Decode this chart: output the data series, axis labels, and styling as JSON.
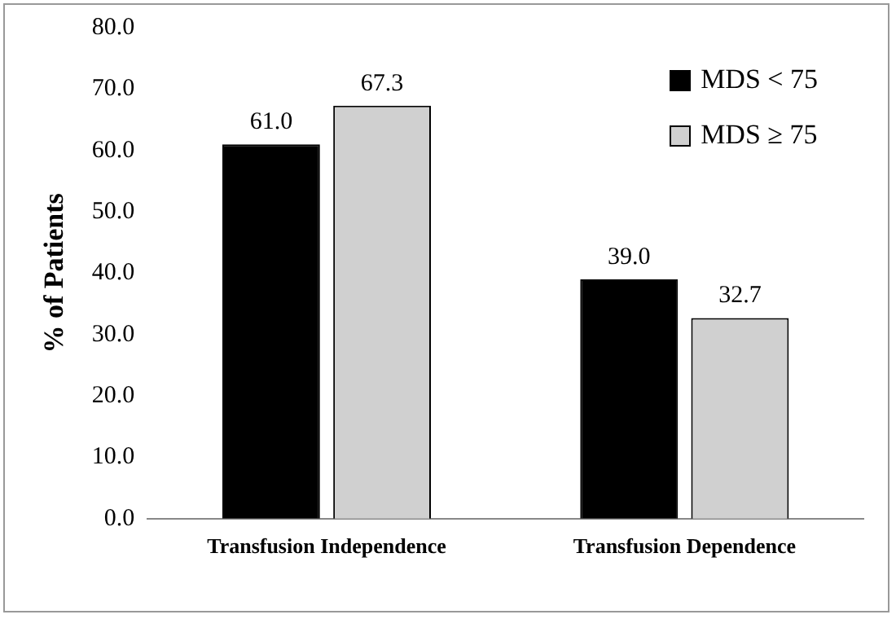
{
  "chart_data": {
    "type": "bar",
    "categories": [
      "Transfusion Independence",
      "Transfusion Dependence"
    ],
    "ylabel": "% of Patients",
    "series": [
      {
        "name": "MDS < 75",
        "color": "#000000",
        "values": [
          61.0,
          39.0
        ],
        "value_labels": [
          "61.0",
          "39.0"
        ]
      },
      {
        "name": "MDS ≥ 75",
        "color": "#d0d0d0",
        "values": [
          67.3,
          32.7
        ],
        "value_labels": [
          "67.3",
          "32.7"
        ]
      }
    ],
    "ylim": [
      0,
      80
    ],
    "yticks": [
      {
        "value": 0,
        "label": "0.0"
      },
      {
        "value": 10,
        "label": "10.0"
      },
      {
        "value": 20,
        "label": "20.0"
      },
      {
        "value": 30,
        "label": "30.0"
      },
      {
        "value": 40,
        "label": "40.0"
      },
      {
        "value": 50,
        "label": "50.0"
      },
      {
        "value": 60,
        "label": "60.0"
      },
      {
        "value": 70,
        "label": "70.0"
      },
      {
        "value": 80,
        "label": "80.0"
      }
    ],
    "grid": false,
    "legend": "top right"
  }
}
